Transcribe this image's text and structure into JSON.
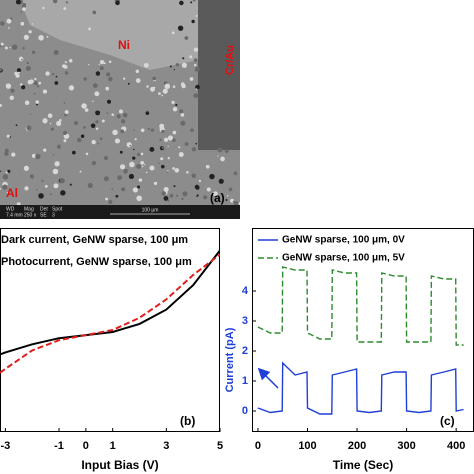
{
  "sem_image": {
    "labels": {
      "ni": "Ni",
      "cr_au": "Cr/Au",
      "al": "Al",
      "panel": "(a)"
    },
    "info_bar": {
      "wd_head": "WD",
      "wd": "7.4 mm",
      "mag_head": "Mag",
      "mag": "250 x",
      "det_head": "Det",
      "det": "SE",
      "spot_head": "Spot",
      "spot": "3",
      "scale": "100 μm"
    }
  },
  "chart_data": [
    {
      "type": "line",
      "panel_label": "(b)",
      "xlabel": "Input Bias (V)",
      "x": [
        -3.2,
        -3,
        -2,
        -1,
        0,
        1,
        2,
        3,
        4,
        5
      ],
      "series": [
        {
          "name": "Dark current, GeNW sparse, 100 μm",
          "color": "#000000",
          "dashed": false,
          "values": [
            3.8,
            3.9,
            4.3,
            4.6,
            4.75,
            4.9,
            5.3,
            6.0,
            7.2,
            8.9
          ]
        },
        {
          "name": "Photocurrent, GeNW sparse, 100 μm",
          "color": "#e0201b",
          "dashed": true,
          "values": [
            2.9,
            3.1,
            4.0,
            4.5,
            4.75,
            5.0,
            5.6,
            6.5,
            7.7,
            8.7
          ]
        }
      ],
      "xlim": [
        -3.2,
        5
      ],
      "xticks": [
        -3,
        -1,
        0,
        1,
        3,
        5
      ],
      "ylim": [
        0,
        10
      ],
      "yticks": []
    },
    {
      "type": "line",
      "panel_label": "(c)",
      "xlabel": "Time (Sec)",
      "ylabel": "Current (pA)",
      "x": [
        0,
        25,
        49,
        50,
        75,
        99,
        100,
        125,
        149,
        150,
        175,
        199,
        200,
        225,
        249,
        250,
        275,
        299,
        300,
        325,
        349,
        350,
        375,
        399,
        400,
        415
      ],
      "series": [
        {
          "name": "GeNW sparse, 100 μm, 0V",
          "color": "#1f3fd6",
          "dashed": false,
          "values": [
            0.1,
            -0.05,
            0.0,
            1.6,
            1.2,
            1.3,
            0.1,
            -0.1,
            -0.1,
            1.2,
            1.3,
            1.4,
            0.0,
            -0.05,
            0.0,
            1.2,
            1.3,
            1.3,
            0.0,
            -0.05,
            0.0,
            1.2,
            1.3,
            1.4,
            0.0,
            0.05
          ]
        },
        {
          "name": "GeNW sparse, 100 μm, 5V",
          "color": "#2e8b2e",
          "dashed": true,
          "values": [
            2.8,
            2.6,
            2.6,
            4.8,
            4.7,
            4.7,
            2.6,
            2.4,
            2.4,
            4.7,
            4.6,
            4.6,
            2.3,
            2.3,
            2.3,
            4.6,
            4.5,
            4.5,
            2.3,
            2.3,
            2.3,
            4.5,
            4.4,
            4.4,
            2.2,
            2.2
          ]
        }
      ],
      "xlim": [
        -12,
        436
      ],
      "xticks": [
        0,
        100,
        200,
        300,
        400
      ],
      "ylim": [
        -0.7,
        6.1
      ],
      "yticks": [
        0,
        1,
        2,
        3,
        4
      ]
    }
  ]
}
